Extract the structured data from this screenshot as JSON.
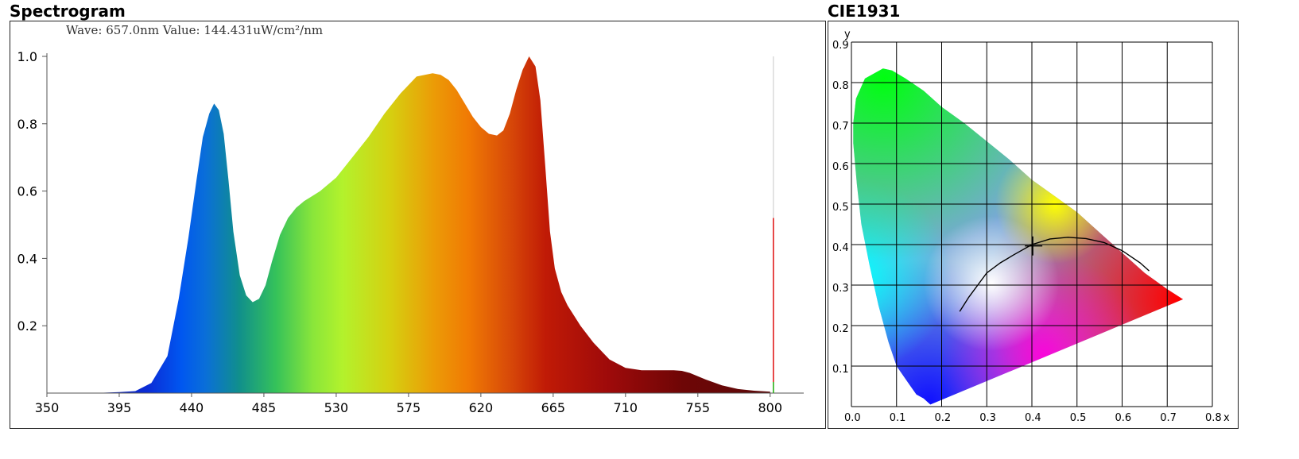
{
  "spectrogram": {
    "title": "Spectrogram",
    "readout": "Wave: 657.0nm Value: 144.431uW/cm²/nm"
  },
  "cie": {
    "title": "CIE1931",
    "axis_x_label": "x",
    "axis_y_label": "y"
  },
  "chart_data": [
    {
      "type": "area",
      "name": "spectrogram",
      "title": "Spectrogram",
      "xlabel": "",
      "ylabel": "",
      "xlim": [
        350,
        810
      ],
      "ylim": [
        0,
        1.0
      ],
      "x_ticks": [
        350,
        395,
        440,
        485,
        530,
        575,
        620,
        665,
        710,
        755,
        800
      ],
      "y_ticks": [
        0.2,
        0.4,
        0.6,
        0.8,
        1.0
      ],
      "x_tick_labels": [
        "350",
        "395",
        "440",
        "485",
        "530",
        "575",
        "620",
        "665",
        "710",
        "755",
        "800"
      ],
      "y_tick_labels": [
        "0.2",
        "0.4",
        "0.6",
        "0.8",
        "1.0"
      ],
      "grid": false,
      "fill": "wavelength-colored",
      "x": [
        350,
        380,
        395,
        405,
        415,
        425,
        432,
        438,
        443,
        447,
        451,
        454,
        457,
        460,
        463,
        466,
        470,
        474,
        478,
        482,
        486,
        490,
        495,
        500,
        505,
        510,
        515,
        520,
        530,
        540,
        550,
        560,
        570,
        580,
        590,
        595,
        600,
        605,
        610,
        615,
        620,
        625,
        630,
        634,
        638,
        642,
        646,
        650,
        654,
        657,
        660,
        663,
        666,
        670,
        674,
        678,
        682,
        690,
        700,
        710,
        720,
        740,
        745,
        750,
        760,
        770,
        780,
        790,
        800
      ],
      "values": [
        0.0,
        0.0,
        0.003,
        0.006,
        0.03,
        0.11,
        0.28,
        0.46,
        0.63,
        0.76,
        0.83,
        0.86,
        0.84,
        0.77,
        0.63,
        0.48,
        0.35,
        0.29,
        0.27,
        0.28,
        0.32,
        0.39,
        0.47,
        0.52,
        0.55,
        0.57,
        0.585,
        0.6,
        0.64,
        0.7,
        0.76,
        0.83,
        0.89,
        0.94,
        0.95,
        0.945,
        0.93,
        0.9,
        0.86,
        0.82,
        0.79,
        0.77,
        0.765,
        0.78,
        0.83,
        0.9,
        0.96,
        1.0,
        0.97,
        0.87,
        0.68,
        0.48,
        0.37,
        0.3,
        0.26,
        0.23,
        0.2,
        0.15,
        0.1,
        0.075,
        0.068,
        0.068,
        0.066,
        0.06,
        0.04,
        0.023,
        0.012,
        0.007,
        0.004
      ],
      "cursor": {
        "x": 802,
        "red_value": 0.52
      }
    },
    {
      "type": "scatter",
      "name": "cie1931",
      "title": "CIE1931",
      "xlabel": "x",
      "ylabel": "y",
      "xlim": [
        0.0,
        0.8
      ],
      "ylim": [
        0.0,
        0.9
      ],
      "x_ticks": [
        0.0,
        0.1,
        0.2,
        0.3,
        0.4,
        0.5,
        0.6,
        0.7,
        0.8
      ],
      "y_ticks": [
        0.1,
        0.2,
        0.3,
        0.4,
        0.5,
        0.6,
        0.7,
        0.8,
        0.9
      ],
      "x_tick_labels": [
        "0.0",
        "0.1",
        "0.2",
        "0.3",
        "0.4",
        "0.5",
        "0.6",
        "0.7",
        "0.8"
      ],
      "y_tick_labels": [
        "0.1",
        "0.2",
        "0.3",
        "0.4",
        "0.5",
        "0.6",
        "0.7",
        "0.8",
        "0.9"
      ],
      "grid": true,
      "locus": [
        [
          0.175,
          0.005
        ],
        [
          0.16,
          0.02
        ],
        [
          0.144,
          0.03
        ],
        [
          0.125,
          0.06
        ],
        [
          0.1,
          0.1
        ],
        [
          0.082,
          0.16
        ],
        [
          0.06,
          0.25
        ],
        [
          0.04,
          0.35
        ],
        [
          0.022,
          0.45
        ],
        [
          0.012,
          0.55
        ],
        [
          0.004,
          0.65
        ],
        [
          0.004,
          0.7
        ],
        [
          0.01,
          0.76
        ],
        [
          0.03,
          0.81
        ],
        [
          0.07,
          0.835
        ],
        [
          0.09,
          0.83
        ],
        [
          0.12,
          0.81
        ],
        [
          0.16,
          0.78
        ],
        [
          0.2,
          0.74
        ],
        [
          0.25,
          0.7
        ],
        [
          0.3,
          0.655
        ],
        [
          0.35,
          0.61
        ],
        [
          0.4,
          0.56
        ],
        [
          0.45,
          0.52
        ],
        [
          0.5,
          0.48
        ],
        [
          0.55,
          0.43
        ],
        [
          0.6,
          0.38
        ],
        [
          0.65,
          0.33
        ],
        [
          0.7,
          0.29
        ],
        [
          0.735,
          0.265
        ]
      ],
      "planckian": [
        [
          0.24,
          0.235
        ],
        [
          0.26,
          0.27
        ],
        [
          0.28,
          0.3
        ],
        [
          0.3,
          0.33
        ],
        [
          0.33,
          0.355
        ],
        [
          0.36,
          0.375
        ],
        [
          0.4,
          0.4
        ],
        [
          0.44,
          0.414
        ],
        [
          0.48,
          0.418
        ],
        [
          0.52,
          0.415
        ],
        [
          0.56,
          0.405
        ],
        [
          0.6,
          0.385
        ],
        [
          0.64,
          0.355
        ],
        [
          0.66,
          0.335
        ]
      ],
      "point": {
        "x": 0.402,
        "y": 0.381
      }
    }
  ]
}
